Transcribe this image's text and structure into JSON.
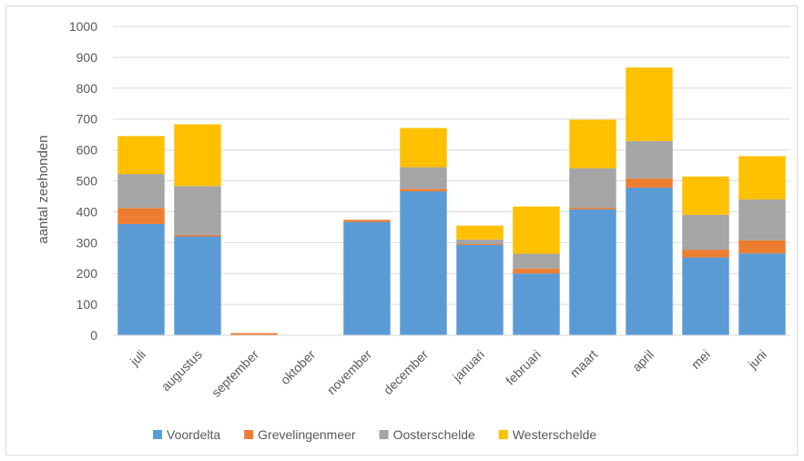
{
  "chart_data": {
    "type": "bar",
    "stacked": true,
    "title": "",
    "xlabel": "",
    "ylabel": "aantal zeehonden",
    "ylim": [
      0,
      1000
    ],
    "ytick_step": 100,
    "grid": true,
    "legend_position": "bottom",
    "categories": [
      "juli",
      "augustus",
      "september",
      "oktober",
      "november",
      "december",
      "januari",
      "februari",
      "maart",
      "april",
      "mei",
      "juni"
    ],
    "series": [
      {
        "name": "Voordelta",
        "color": "#5b9bd5",
        "values": [
          360,
          320,
          0,
          0,
          367,
          466,
          292,
          200,
          408,
          478,
          252,
          265
        ]
      },
      {
        "name": "Grevelingenmeer",
        "color": "#ed7d31",
        "values": [
          52,
          5,
          7,
          0,
          7,
          8,
          3,
          16,
          5,
          30,
          25,
          42
        ]
      },
      {
        "name": "Oosterschelde",
        "color": "#a5a5a5",
        "values": [
          110,
          158,
          0,
          0,
          0,
          70,
          15,
          48,
          128,
          121,
          113,
          133
        ]
      },
      {
        "name": "Westerschelde",
        "color": "#ffc000",
        "values": [
          123,
          200,
          0,
          0,
          0,
          127,
          45,
          153,
          157,
          238,
          124,
          140
        ]
      }
    ]
  }
}
